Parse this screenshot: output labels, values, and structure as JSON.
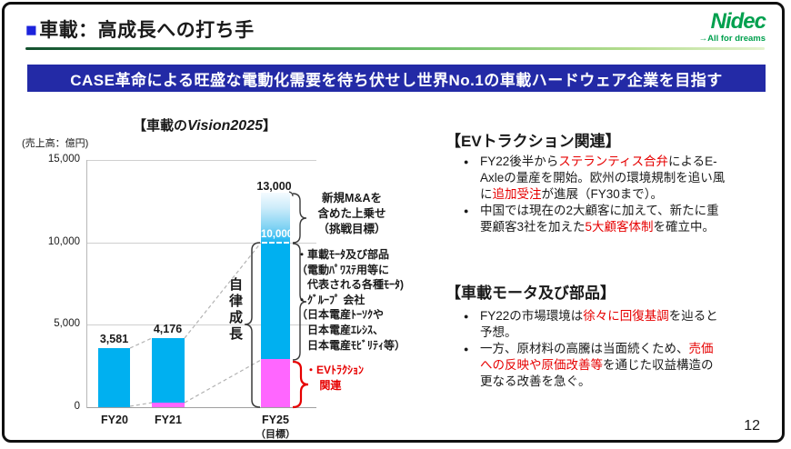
{
  "header": {
    "title": "車載：高成長への打ち手",
    "logo": {
      "name": "Nidec",
      "tagline": "→All for dreams"
    }
  },
  "banner": {
    "text": "CASE革命による旺盛な電動化需要を待ち伏せし世界No.1の車載ハードウェア企業を目指す"
  },
  "chart_data": {
    "type": "bar",
    "stacked": true,
    "title_prefix": "【車載の",
    "title_emph": "Vision2025",
    "title_suffix": "】",
    "unit_label": "(売上高：億円)",
    "ylabel": "売上高（億円）",
    "ylim": [
      0,
      15000
    ],
    "grid": true,
    "y_ticks": [
      {
        "v": 15000,
        "label": "15,000"
      },
      {
        "v": 10000,
        "label": "10,000"
      },
      {
        "v": 5000,
        "label": "5,000"
      },
      {
        "v": 0,
        "label": "0"
      }
    ],
    "categories": [
      "FY20",
      "FY21",
      "FY25"
    ],
    "fy25_note": "（目標）",
    "series": [
      {
        "name": "EVトラクション関連",
        "color": "#FF66FF",
        "values": [
          0,
          250,
          2900
        ]
      },
      {
        "name": "車載モータ及び部品・グループ会社（自律成長）",
        "color": "#00B0F0",
        "values": [
          3581,
          3926,
          7100
        ]
      },
      {
        "name": "新規M&Aを含めた上乗せ（挑戦目標）",
        "color": "gradient-blue",
        "values": [
          0,
          0,
          3000
        ]
      }
    ],
    "totals": [
      3581,
      4176,
      13000
    ],
    "total_labels": [
      "3,581",
      "4,176",
      "13,000"
    ],
    "fy25_mid_value": 10000,
    "fy25_mid_label": "10,000",
    "annotations": {
      "mna_lines": [
        "新規M&Aを",
        "含めた上乗せ",
        "（挑戦目標）"
      ],
      "component_lines": [
        "・車載ﾓｰﾀ及び部品",
        "（電動ﾊﾟﾜｽﾃ用等に",
        "　代表される各種ﾓｰﾀ)",
        "・ｸﾞﾙｰﾌﾟ 会社",
        "（日本電産ﾄｰｿｸや",
        "　日本電産ｴﾚｼｽ、",
        "　日本電産ﾓﾋﾞﾘﾃｨ等）"
      ],
      "ev_lines": [
        "・EVﾄﾗｸｼｮﾝ",
        "　 関連"
      ],
      "autonomous_growth": "自律成長"
    }
  },
  "sections": [
    {
      "title": "【EVトラクション関連】",
      "bullets": [
        {
          "lines": [
            [
              {
                "t": "FY22後半から"
              },
              {
                "t": "ステランティス合弁",
                "red": true
              },
              {
                "t": "によるE-"
              }
            ],
            [
              {
                "t": "Axleの量産を開始。欧州の環境規制を追い風"
              }
            ],
            [
              {
                "t": "に"
              },
              {
                "t": "追加受注",
                "red": true
              },
              {
                "t": "が進展（FY30まで）。"
              }
            ]
          ]
        },
        {
          "lines": [
            [
              {
                "t": "中国では現在の2大顧客に加えて、新たに重"
              }
            ],
            [
              {
                "t": "要顧客3社を加えた"
              },
              {
                "t": "5大顧客体制",
                "red": true
              },
              {
                "t": "を確立中。"
              }
            ]
          ]
        }
      ]
    },
    {
      "title": "【車載モータ及び部品】",
      "bullets": [
        {
          "lines": [
            [
              {
                "t": "FY22の市場環境は"
              },
              {
                "t": "徐々に回復基調",
                "red": true
              },
              {
                "t": "を辿ると"
              }
            ],
            [
              {
                "t": "予想。"
              }
            ]
          ]
        },
        {
          "lines": [
            [
              {
                "t": "一方、原材料の高騰は当面続くため、"
              },
              {
                "t": "売価",
                "red": true
              }
            ],
            [
              {
                "t": "への反映や原価改善等",
                "red": true
              },
              {
                "t": "を通じた収益構造の"
              }
            ],
            [
              {
                "t": "更なる改善を急ぐ。"
              }
            ]
          ]
        }
      ]
    }
  ],
  "footer": {
    "page_number": "12"
  }
}
